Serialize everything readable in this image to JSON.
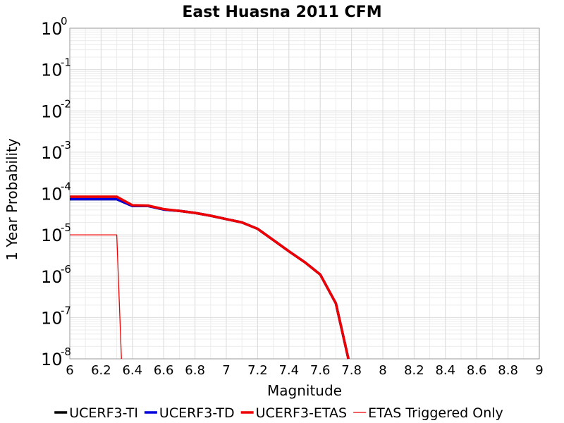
{
  "chart_data": {
    "type": "line",
    "title": "East Huasna 2011 CFM",
    "xlabel": "Magnitude",
    "ylabel": "1 Year Probability",
    "xlim": [
      6,
      9
    ],
    "ylim": [
      1e-08,
      1
    ],
    "yscale": "log",
    "x_ticks": [
      "6",
      "6.2",
      "6.4",
      "6.6",
      "6.8",
      "7",
      "7.2",
      "7.4",
      "7.6",
      "7.8",
      "8",
      "8.2",
      "8.4",
      "8.6",
      "8.8",
      "9"
    ],
    "y_tick_exponents": [
      "0",
      "-1",
      "-2",
      "-3",
      "-4",
      "-5",
      "-6",
      "-7",
      "-8"
    ],
    "y_tick_base": "10",
    "grid": true,
    "legend_position": "bottom",
    "series": [
      {
        "name": "UCERF3-TI",
        "color": "#000000",
        "x": [
          6.0,
          6.3,
          6.4,
          6.5,
          6.6,
          6.7,
          6.8,
          6.9,
          7.0,
          7.1,
          7.2,
          7.3,
          7.4,
          7.5,
          7.6,
          7.7,
          7.78
        ],
        "y": [
          7.3e-05,
          7.3e-05,
          5e-05,
          5e-05,
          4.1e-05,
          3.8e-05,
          3.4e-05,
          2.9e-05,
          2.4e-05,
          2e-05,
          1.4e-05,
          7.5e-06,
          4e-06,
          2.2e-06,
          1.1e-06,
          2.2e-07,
          1e-08
        ]
      },
      {
        "name": "UCERF3-TD",
        "color": "#0000dd",
        "x": [
          6.0,
          6.3,
          6.4,
          6.5,
          6.6,
          6.7,
          6.8,
          6.9,
          7.0,
          7.1,
          7.2,
          7.3,
          7.4,
          7.5,
          7.6,
          7.7,
          7.78
        ],
        "y": [
          7.3e-05,
          7.3e-05,
          5e-05,
          5e-05,
          4.1e-05,
          3.8e-05,
          3.4e-05,
          2.9e-05,
          2.4e-05,
          2e-05,
          1.4e-05,
          7.5e-06,
          4e-06,
          2.2e-06,
          1.1e-06,
          2.2e-07,
          1e-08
        ]
      },
      {
        "name": "UCERF3-ETAS",
        "color": "#ee0000",
        "x": [
          6.0,
          6.3,
          6.4,
          6.5,
          6.6,
          6.7,
          6.8,
          6.9,
          7.0,
          7.1,
          7.2,
          7.3,
          7.4,
          7.5,
          7.6,
          7.7,
          7.78
        ],
        "y": [
          8.4e-05,
          8.4e-05,
          5.2e-05,
          5.1e-05,
          4.2e-05,
          3.8e-05,
          3.4e-05,
          2.9e-05,
          2.4e-05,
          2e-05,
          1.4e-05,
          7.5e-06,
          4e-06,
          2.2e-06,
          1.1e-06,
          2.2e-07,
          1e-08
        ]
      },
      {
        "name": "ETAS Triggered Only",
        "color": "#ee0000",
        "x": [
          6.0,
          6.3,
          6.33
        ],
        "y": [
          1e-05,
          1e-05,
          1e-08
        ]
      }
    ]
  }
}
